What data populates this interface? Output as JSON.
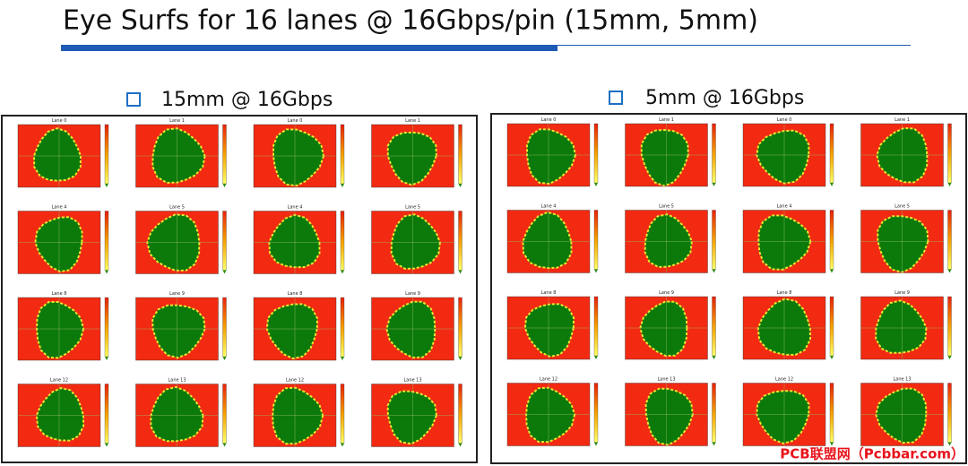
{
  "title": "Eye Surfs for 16 lanes @ 16Gbps/pin (15mm, 5mm)",
  "sections": [
    {
      "label": "15mm @ 16Gbps",
      "panels": [
        "Lane 0",
        "Lane 1",
        "Lane 0",
        "Lane 1",
        "Lane 4",
        "Lane 5",
        "Lane 4",
        "Lane 5",
        "Lane 8",
        "Lane 9",
        "Lane 8",
        "Lane 9",
        "Lane 12",
        "Lane 13",
        "Lane 12",
        "Lane 13"
      ]
    },
    {
      "label": "5mm @ 16Gbps",
      "panels": [
        "Lane 0",
        "Lane 1",
        "Lane 0",
        "Lane 1",
        "Lane 4",
        "Lane 5",
        "Lane 4",
        "Lane 5",
        "Lane 8",
        "Lane 9",
        "Lane 8",
        "Lane 9",
        "Lane 12",
        "Lane 13",
        "Lane 12",
        "Lane 13"
      ]
    }
  ],
  "watermark": "PCB联盟网（Pcbbar.com）"
}
